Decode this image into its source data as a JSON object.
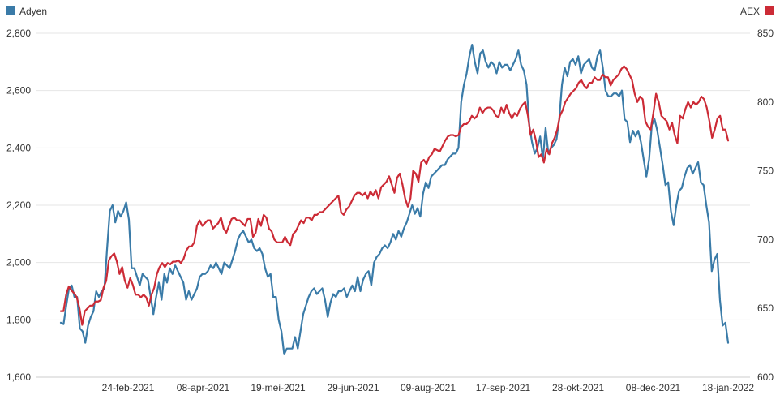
{
  "chart_data": {
    "type": "line",
    "grid": "horizontal",
    "legend": [
      "top-left",
      "top-right"
    ],
    "x_tick_labels": [
      "24-feb-2021",
      "08-apr-2021",
      "19-mei-2021",
      "29-jun-2021",
      "09-aug-2021",
      "17-sep-2021",
      "28-okt-2021",
      "08-dec-2021",
      "18-jan-2022"
    ],
    "y_left": {
      "range": [
        1600,
        2800
      ],
      "ticks": [
        "1,600",
        "1,800",
        "2,000",
        "2,200",
        "2,400",
        "2,600",
        "2,800"
      ]
    },
    "y_right": {
      "range": [
        600,
        850
      ],
      "ticks": [
        "600",
        "650",
        "700",
        "750",
        "800",
        "850"
      ]
    },
    "series": [
      {
        "name": "Adyen",
        "axis": "left",
        "color": "#3a7ba8",
        "values": [
          1790,
          1785,
          1850,
          1910,
          1920,
          1880,
          1880,
          1770,
          1760,
          1720,
          1780,
          1810,
          1830,
          1900,
          1880,
          1900,
          1910,
          2050,
          2180,
          2200,
          2140,
          2180,
          2160,
          2180,
          2210,
          2150,
          1980,
          1980,
          1950,
          1920,
          1960,
          1950,
          1940,
          1880,
          1820,
          1880,
          1930,
          1870,
          1960,
          1930,
          1980,
          1960,
          1990,
          1970,
          1950,
          1930,
          1870,
          1900,
          1870,
          1890,
          1910,
          1950,
          1960,
          1960,
          1970,
          1990,
          1980,
          2000,
          1980,
          1960,
          2000,
          1990,
          1980,
          2010,
          2040,
          2080,
          2100,
          2110,
          2090,
          2070,
          2080,
          2050,
          2040,
          2050,
          2030,
          1980,
          1950,
          1960,
          1880,
          1880,
          1800,
          1760,
          1680,
          1700,
          1700,
          1700,
          1740,
          1700,
          1760,
          1820,
          1850,
          1880,
          1900,
          1910,
          1890,
          1900,
          1910,
          1870,
          1810,
          1860,
          1890,
          1880,
          1900,
          1900,
          1910,
          1880,
          1900,
          1920,
          1900,
          1950,
          1900,
          1940,
          1960,
          1970,
          1920,
          2000,
          2020,
          2030,
          2050,
          2060,
          2050,
          2070,
          2100,
          2080,
          2110,
          2090,
          2120,
          2140,
          2170,
          2200,
          2170,
          2190,
          2160,
          2240,
          2280,
          2260,
          2300,
          2310,
          2320,
          2330,
          2340,
          2340,
          2360,
          2370,
          2380,
          2380,
          2400,
          2560,
          2620,
          2660,
          2720,
          2760,
          2700,
          2660,
          2730,
          2740,
          2700,
          2680,
          2700,
          2690,
          2660,
          2700,
          2680,
          2690,
          2690,
          2670,
          2690,
          2710,
          2740,
          2690,
          2670,
          2620,
          2480,
          2420,
          2380,
          2400,
          2440,
          2360,
          2470,
          2380,
          2400,
          2410,
          2430,
          2500,
          2620,
          2680,
          2650,
          2700,
          2710,
          2690,
          2720,
          2660,
          2690,
          2700,
          2710,
          2680,
          2670,
          2720,
          2740,
          2680,
          2600,
          2580,
          2580,
          2590,
          2590,
          2580,
          2600,
          2500,
          2490,
          2420,
          2460,
          2440,
          2460,
          2420,
          2360,
          2300,
          2360,
          2480,
          2500,
          2460,
          2400,
          2340,
          2270,
          2280,
          2180,
          2130,
          2200,
          2250,
          2260,
          2300,
          2330,
          2340,
          2310,
          2330,
          2350,
          2280,
          2270,
          2200,
          2140,
          1970,
          2010,
          2030,
          1870,
          1780,
          1790,
          1720
        ]
      },
      {
        "name": "AEX",
        "axis": "right",
        "color": "#cc2b36",
        "values": [
          648,
          648,
          660,
          666,
          663,
          661,
          658,
          650,
          638,
          648,
          650,
          652,
          652,
          655,
          655,
          656,
          665,
          670,
          685,
          688,
          690,
          684,
          675,
          680,
          670,
          665,
          672,
          667,
          660,
          660,
          658,
          660,
          658,
          652,
          660,
          665,
          675,
          680,
          683,
          680,
          683,
          682,
          684,
          684,
          685,
          683,
          686,
          692,
          695,
          695,
          698,
          710,
          714,
          710,
          712,
          714,
          714,
          708,
          710,
          712,
          716,
          708,
          705,
          710,
          715,
          716,
          714,
          714,
          712,
          710,
          715,
          715,
          702,
          705,
          715,
          710,
          718,
          716,
          708,
          706,
          700,
          698,
          698,
          698,
          702,
          698,
          696,
          704,
          706,
          710,
          714,
          712,
          716,
          716,
          714,
          718,
          718,
          720,
          720,
          722,
          724,
          726,
          728,
          730,
          732,
          720,
          718,
          722,
          724,
          728,
          732,
          734,
          734,
          732,
          734,
          730,
          735,
          732,
          736,
          730,
          738,
          740,
          742,
          746,
          740,
          734,
          745,
          748,
          740,
          730,
          724,
          730,
          750,
          748,
          742,
          756,
          758,
          755,
          760,
          762,
          766,
          765,
          764,
          768,
          772,
          775,
          776,
          776,
          775,
          776,
          782,
          784,
          784,
          786,
          790,
          788,
          790,
          796,
          792,
          795,
          796,
          796,
          794,
          790,
          789,
          796,
          792,
          798,
          792,
          788,
          792,
          790,
          795,
          798,
          800,
          790,
          776,
          780,
          772,
          760,
          762,
          756,
          766,
          762,
          770,
          774,
          780,
          790,
          794,
          800,
          803,
          806,
          808,
          810,
          814,
          816,
          812,
          810,
          814,
          814,
          818,
          816,
          816,
          820,
          818,
          818,
          812,
          816,
          818,
          820,
          824,
          826,
          824,
          820,
          816,
          806,
          800,
          804,
          802,
          786,
          782,
          780,
          792,
          806,
          800,
          790,
          788,
          786,
          780,
          785,
          776,
          770,
          790,
          788,
          795,
          800,
          796,
          800,
          798,
          800,
          804,
          802,
          796,
          786,
          774,
          780,
          788,
          790,
          780,
          780,
          772
        ]
      }
    ]
  }
}
